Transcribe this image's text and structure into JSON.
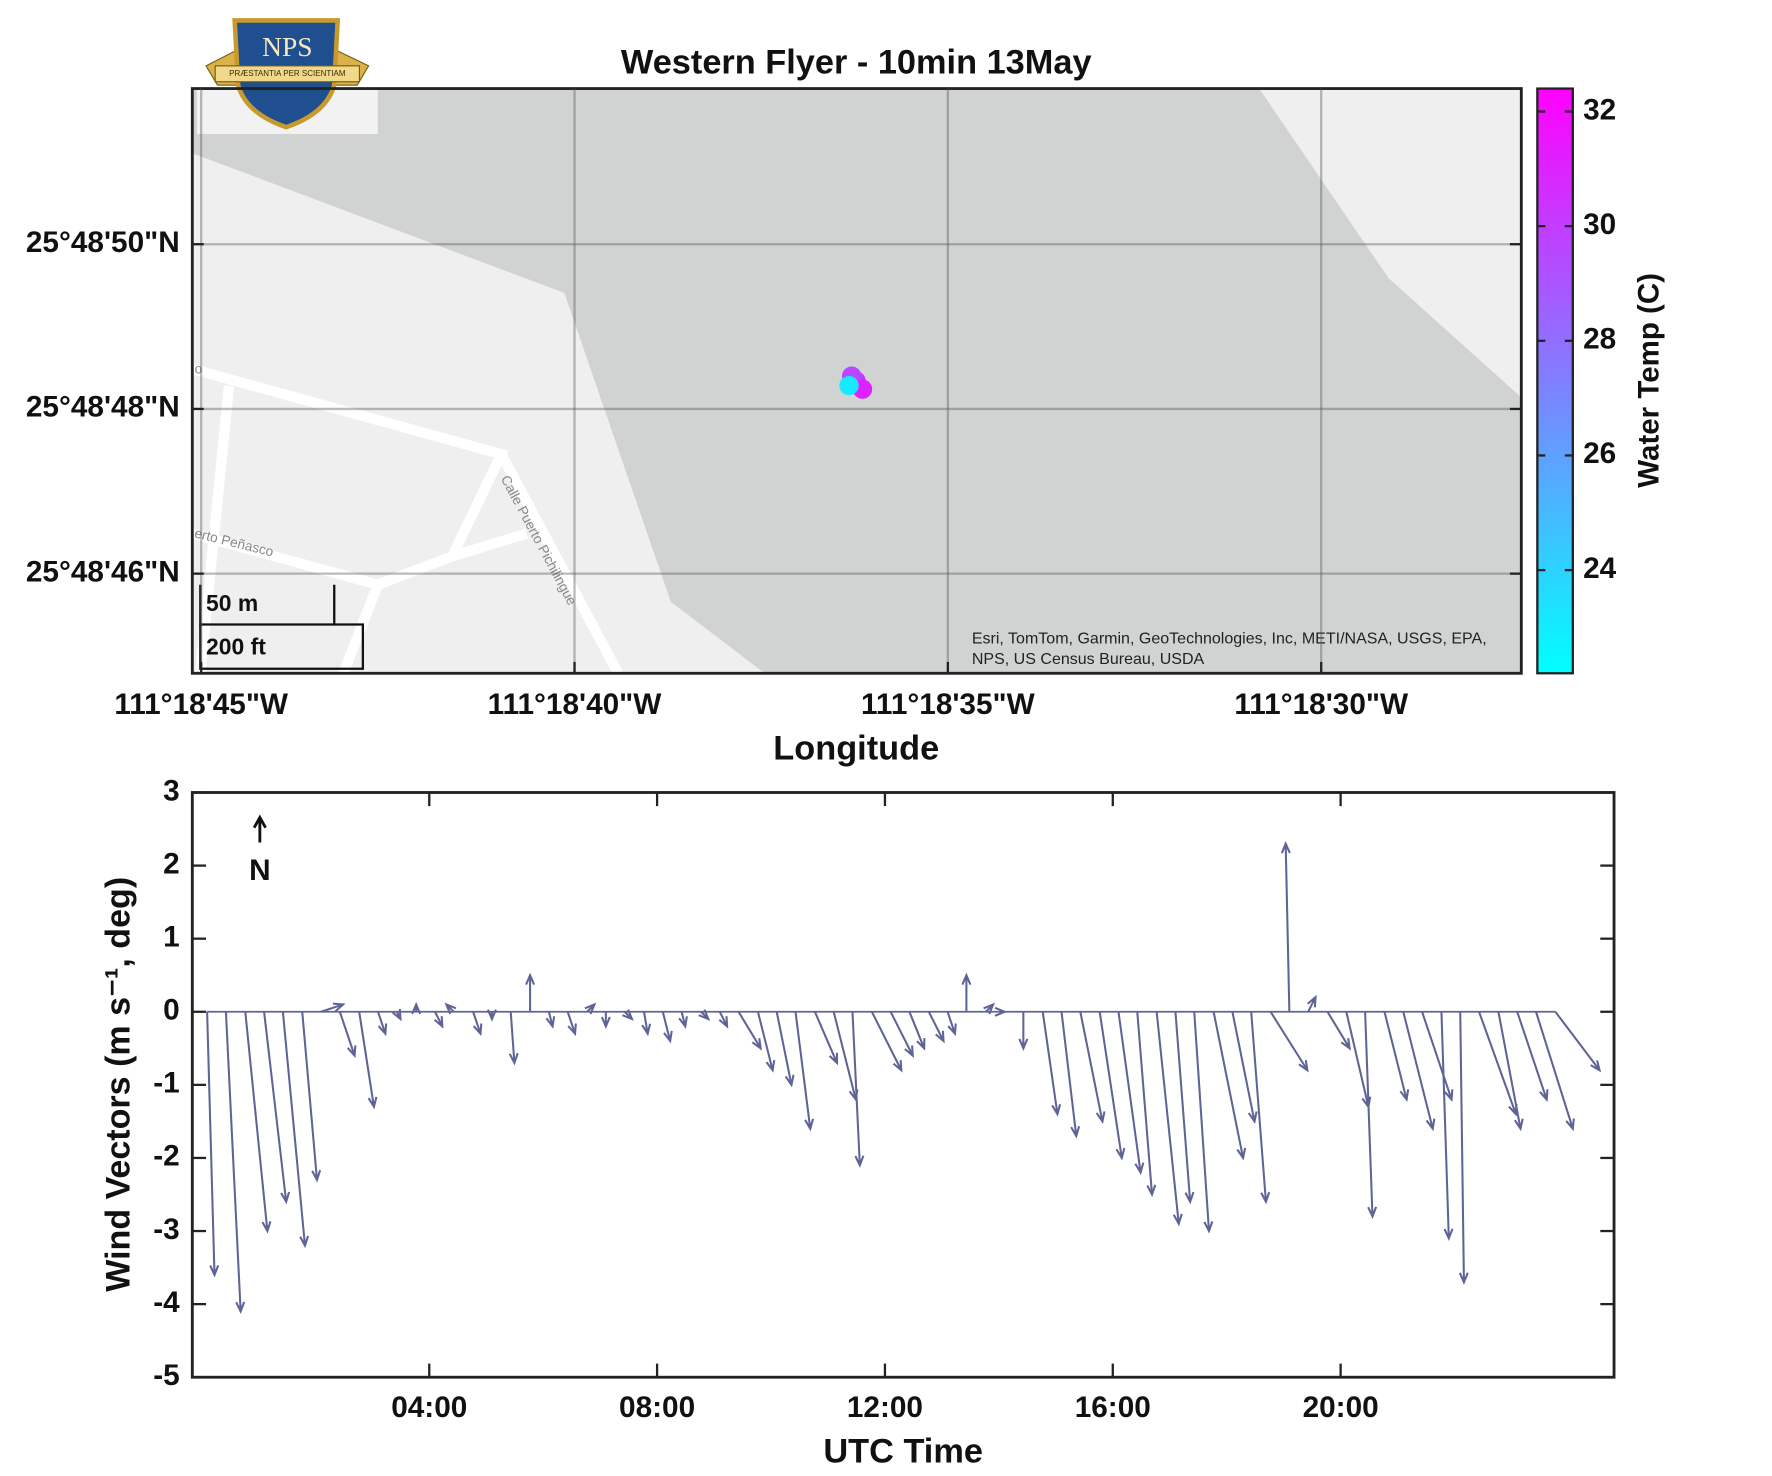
{
  "logo": {
    "text": "NPS",
    "motto": "PRÆSTANTIA PER SCIENTIAM"
  },
  "chart_data": [
    {
      "type": "geoscatter",
      "title": "Western Flyer - 10min 13May",
      "xlabel": "Longitude",
      "colorbar_label": "Water Temp (C)",
      "colormap": "cool",
      "lon": [
        -111.310064,
        -111.31008,
        -111.31004,
        -111.31009
      ],
      "lat": [
        25.8134278,
        25.813444,
        25.8134,
        25.813412
      ],
      "temperature": [
        30.5,
        29.5,
        31,
        23
      ],
      "xlim": [
        -111.312533,
        -111.3075889
      ],
      "ylim": [
        25.8124417,
        25.8144139
      ],
      "xticks": [
        {
          "value": -111.3125,
          "label": "111°18'45\"W"
        },
        {
          "value": -111.3111111,
          "label": "111°18'40\"W"
        },
        {
          "value": -111.3097222,
          "label": "111°18'35\"W"
        },
        {
          "value": -111.3083333,
          "label": "111°18'30\"W"
        }
      ],
      "yticks": [
        {
          "value": 25.8127778,
          "label": "25°48'46\"N"
        },
        {
          "value": 25.8133333,
          "label": "25°48'48\"N"
        },
        {
          "value": 25.8138889,
          "label": "25°48'50\"N"
        }
      ],
      "clim": [
        22.2,
        32.4
      ],
      "cticks": [
        24,
        26,
        28,
        30,
        32
      ],
      "grid": true,
      "scale_bar": [
        "50 m",
        "200 ft"
      ],
      "street_labels": [
        "Calle Puerto Pichilingue",
        "erto Peñasco",
        "o"
      ],
      "attribution": [
        "Esri, TomTom, Garmin, GeoTechnologies, Inc, METI/NASA, USGS, EPA,",
        "NPS, US Census Bureau, USDA"
      ]
    },
    {
      "type": "quiver",
      "xlabel": "UTC Time",
      "ylabel": "Wind Vectors (m s⁻¹, deg)",
      "annotation": "N",
      "color": "#5f6496",
      "x": [
        0.1,
        0.43,
        0.77,
        1.1,
        1.43,
        1.77,
        2.1,
        2.43,
        2.77,
        3.1,
        3.43,
        3.77,
        4.1,
        4.43,
        4.77,
        5.1,
        5.43,
        5.77,
        6.1,
        6.43,
        6.77,
        7.1,
        7.43,
        7.77,
        8.1,
        8.43,
        8.77,
        9.1,
        9.43,
        9.77,
        10.1,
        10.43,
        10.77,
        11.1,
        11.43,
        11.77,
        12.1,
        12.43,
        12.77,
        13.1,
        13.43,
        13.77,
        14.1,
        14.43,
        14.77,
        15.1,
        15.43,
        15.77,
        16.1,
        16.43,
        16.77,
        17.1,
        17.43,
        17.77,
        18.1,
        18.43,
        18.77,
        19.1,
        19.43,
        19.77,
        20.1,
        20.43,
        20.77,
        21.1,
        21.43,
        21.77,
        22.1,
        22.43,
        22.77,
        23.1,
        23.43,
        23.77
      ],
      "u": [
        0.1,
        0.2,
        0.3,
        0.3,
        0.3,
        0.2,
        0.3,
        0.2,
        0.2,
        0.1,
        0.05,
        0,
        0.1,
        -0.1,
        0.1,
        0,
        0.05,
        0,
        0.05,
        0.1,
        0.1,
        0,
        0.1,
        0.05,
        0.1,
        0.05,
        0.1,
        0.1,
        0.3,
        0.2,
        0.2,
        0.2,
        0.3,
        0.3,
        0.1,
        0.4,
        0.3,
        0.2,
        0.2,
        0.1,
        0,
        0.1,
        0,
        0,
        0.2,
        0.2,
        0.3,
        0.3,
        0.3,
        0.2,
        0.3,
        0.2,
        0.2,
        0.4,
        0.3,
        0.2,
        0.5,
        -0.05,
        0.1,
        0.3,
        0.3,
        0.1,
        0.3,
        0.4,
        0.4,
        0.1,
        0.05,
        0.5,
        0.3,
        0.4,
        0.5,
        0.6
      ],
      "v": [
        -3.6,
        -4.1,
        -3.0,
        -2.6,
        -3.2,
        -2.3,
        0.1,
        -0.6,
        -1.3,
        -0.3,
        -0.1,
        0.1,
        -0.2,
        0.1,
        -0.3,
        -0.1,
        -0.7,
        0.5,
        -0.2,
        -0.3,
        0.1,
        -0.2,
        -0.1,
        -0.3,
        -0.4,
        -0.2,
        -0.1,
        -0.2,
        -0.5,
        -0.8,
        -1.0,
        -1.6,
        -0.7,
        -1.2,
        -2.1,
        -0.8,
        -0.6,
        -0.5,
        -0.4,
        -0.3,
        0.5,
        0.1,
        0,
        -0.5,
        -1.4,
        -1.7,
        -1.5,
        -2.0,
        -2.2,
        -2.5,
        -2.9,
        -2.6,
        -3.0,
        -2.0,
        -1.5,
        -2.6,
        -0.8,
        2.3,
        0.2,
        -0.5,
        -1.3,
        -2.8,
        -1.2,
        -1.6,
        -1.2,
        -3.1,
        -3.7,
        -1.4,
        -1.6,
        -1.2,
        -1.6,
        -0.8
      ],
      "xlim": [
        -0.16,
        24.8
      ],
      "ylim": [
        -5,
        3
      ],
      "xticks": [
        {
          "value": 4,
          "label": "04:00"
        },
        {
          "value": 8,
          "label": "08:00"
        },
        {
          "value": 12,
          "label": "12:00"
        },
        {
          "value": 16,
          "label": "16:00"
        },
        {
          "value": 20,
          "label": "20:00"
        }
      ],
      "yticks": [
        -5,
        -4,
        -3,
        -2,
        -1,
        0,
        1,
        2,
        3
      ]
    }
  ]
}
